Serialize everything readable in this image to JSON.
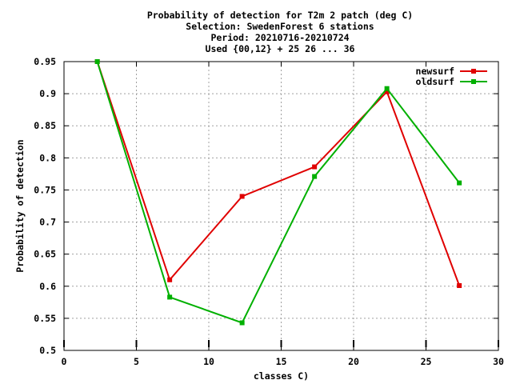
{
  "chart_data": {
    "type": "line",
    "title_lines": [
      "Probability of detection  for T2m 2 patch (deg C)",
      "Selection: SwedenForest      6 stations",
      "Period: 20210716-20210724",
      "Used {00,12} + 25 26 ... 36"
    ],
    "xlabel": "classes C)",
    "ylabel": "Probability of detection",
    "xlim": [
      0,
      30
    ],
    "ylim": [
      0.5,
      0.95
    ],
    "xticks": [
      0,
      5,
      10,
      15,
      20,
      25,
      30
    ],
    "yticks": [
      0.5,
      0.55,
      0.6,
      0.65,
      0.7,
      0.75,
      0.8,
      0.85,
      0.9,
      0.95
    ],
    "xtick_labels": [
      "0",
      "5",
      "10",
      "15",
      "20",
      "25",
      "30"
    ],
    "ytick_labels": [
      "0.5",
      "0.55",
      "0.6",
      "0.65",
      "0.7",
      "0.75",
      "0.8",
      "0.85",
      "0.9",
      "0.95"
    ],
    "grid": true,
    "legend_position": "top-right",
    "x": [
      2.3,
      7.3,
      12.3,
      17.3,
      22.3,
      27.3
    ],
    "series": [
      {
        "name": "newsurf",
        "color": "#e00000",
        "values": [
          0.95,
          0.61,
          0.74,
          0.786,
          0.903,
          0.601
        ]
      },
      {
        "name": "oldsurf",
        "color": "#00b000",
        "values": [
          0.95,
          0.583,
          0.543,
          0.771,
          0.908,
          0.761
        ]
      }
    ]
  }
}
